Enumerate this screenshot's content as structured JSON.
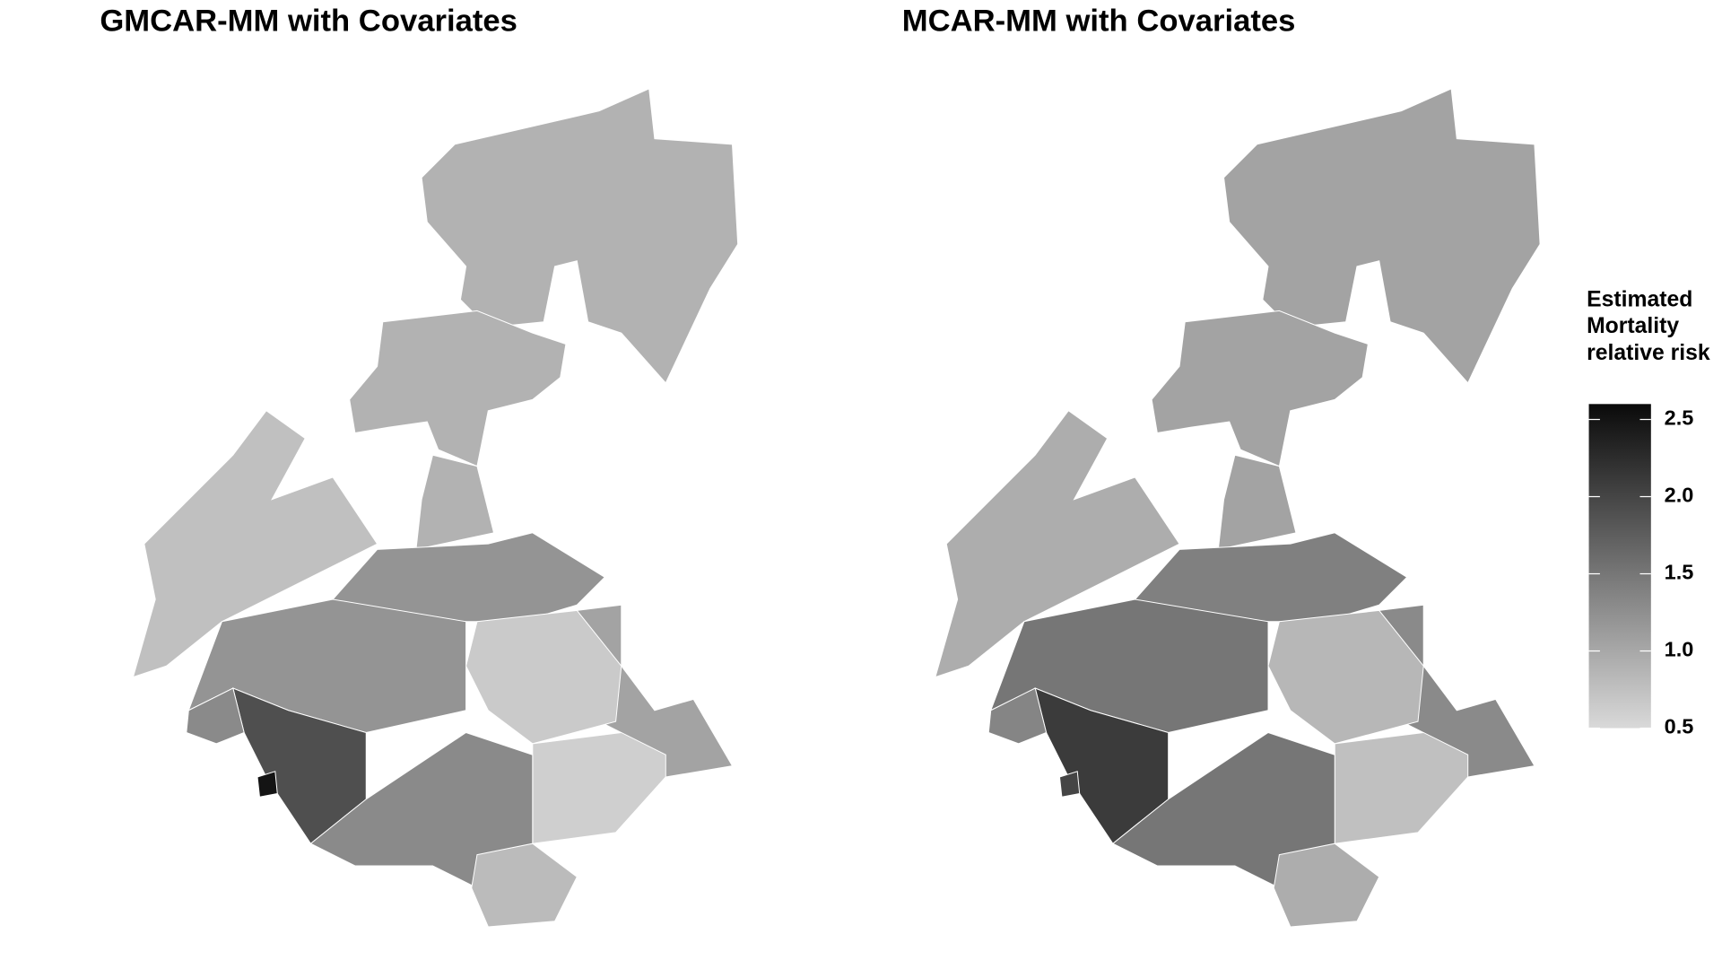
{
  "chart_data": [
    {
      "type": "choropleth",
      "title": "GMCAR-MM with Covariates",
      "values": [
        0.9,
        0.9,
        0.9,
        0.75,
        1.2,
        1.05,
        0.65,
        0.6,
        1.2,
        1.9,
        1.3,
        0.8,
        2.5,
        1.3
      ]
    },
    {
      "type": "choropleth",
      "title": "MCAR-MM with Covariates",
      "values": [
        1.05,
        1.05,
        1.05,
        0.95,
        1.4,
        1.3,
        0.85,
        0.75,
        1.5,
        2.1,
        1.5,
        0.95,
        2.0,
        1.35
      ]
    }
  ],
  "legend": {
    "title": "Estimated Mortality relative risk",
    "low_color": "#d9d9d9",
    "high_color": "#0a0a0a",
    "clim": [
      0.5,
      2.6
    ],
    "cticks": [
      0.5,
      {
        "value": 1,
        "label": "1.0"
      },
      1.5,
      {
        "value": 2,
        "label": "2.0"
      },
      2.5
    ]
  }
}
